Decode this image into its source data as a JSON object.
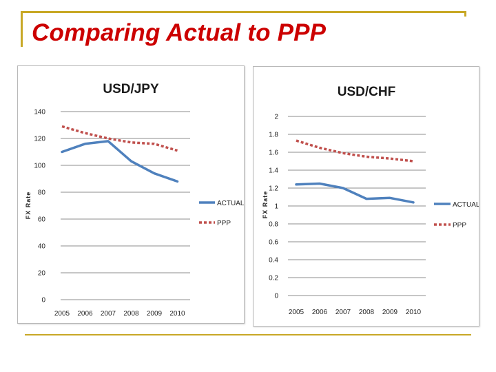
{
  "slide": {
    "title": "Comparing Actual to PPP",
    "accent_color": "#c8a826",
    "title_color": "#cc0000"
  },
  "chart_data": [
    {
      "type": "line",
      "title": "USD/JPY",
      "xlabel": "",
      "ylabel": "FX Rate",
      "categories": [
        "2005",
        "2006",
        "2007",
        "2008",
        "2009",
        "2010"
      ],
      "ylim": [
        0,
        140
      ],
      "yticks": [
        "0",
        "20",
        "40",
        "60",
        "80",
        "100",
        "120",
        "140"
      ],
      "grid": true,
      "legend": "right",
      "series": [
        {
          "name": "ACTUAL",
          "color": "#4f81bd",
          "dash": "solid",
          "values": [
            110,
            116,
            118,
            103,
            94,
            88
          ]
        },
        {
          "name": "PPP",
          "color": "#c0504d",
          "dash": "dashed",
          "values": [
            129,
            124,
            120,
            117,
            116,
            111
          ]
        }
      ]
    },
    {
      "type": "line",
      "title": "USD/CHF",
      "xlabel": "",
      "ylabel": "FX Rate",
      "categories": [
        "2005",
        "2006",
        "2007",
        "2008",
        "2009",
        "2010"
      ],
      "ylim": [
        0,
        2
      ],
      "yticks": [
        "0",
        "0.2",
        "0.4",
        "0.6",
        "0.8",
        "1",
        "1.2",
        "1.4",
        "1.6",
        "1.8",
        "2"
      ],
      "grid": true,
      "legend": "right",
      "series": [
        {
          "name": "ACTUAL",
          "color": "#4f81bd",
          "dash": "solid",
          "values": [
            1.24,
            1.25,
            1.2,
            1.08,
            1.09,
            1.04
          ]
        },
        {
          "name": "PPP",
          "color": "#c0504d",
          "dash": "dashed",
          "values": [
            1.73,
            1.65,
            1.59,
            1.55,
            1.53,
            1.5
          ]
        }
      ]
    }
  ]
}
